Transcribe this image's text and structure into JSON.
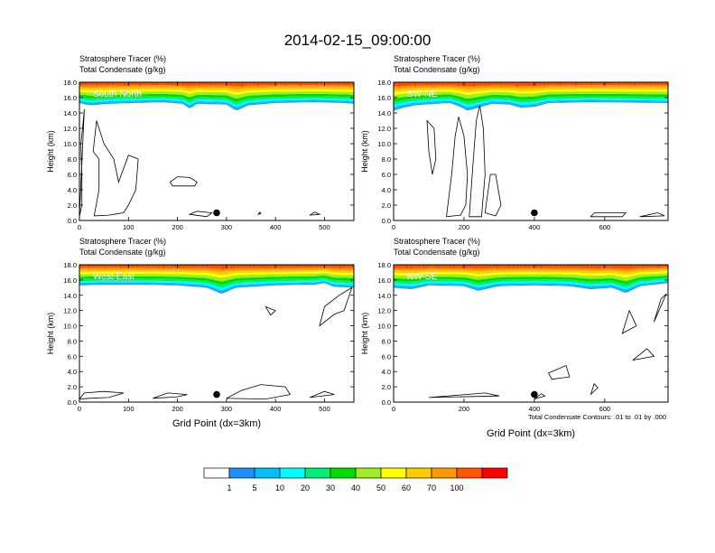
{
  "figure": {
    "title": "2014-02-15_09:00:00",
    "shared_xlabel": "Grid Point (dx=3km)",
    "contour_note": "Total Condensate Contours: .01 to .01 by .000"
  },
  "colorbar": {
    "colors": [
      "#ffffff",
      "#1e90ff",
      "#00bfff",
      "#00ffff",
      "#00ee76",
      "#00dd00",
      "#a0ee20",
      "#ffff00",
      "#ffcc00",
      "#ff9900",
      "#ff5500",
      "#ff0000"
    ],
    "labels": [
      "1",
      "5",
      "10",
      "20",
      "30",
      "40",
      "50",
      "60",
      "70",
      "100"
    ]
  },
  "chart_data": [
    {
      "type": "heatmap",
      "panel": "South-North",
      "label_line1": "Stratosphere Tracer   (%)",
      "label_line2": "Total Condensate   (g/kg)",
      "ylabel": "Height (km)",
      "xlabel": "",
      "xlim": [
        0,
        560
      ],
      "ylim": [
        0,
        18
      ],
      "xticks": [
        "0",
        "100",
        "200",
        "300",
        "400",
        "500"
      ],
      "xtick_values": [
        0,
        100,
        200,
        300,
        400,
        500
      ],
      "yticks": [
        "0.0",
        "2.0",
        "4.0",
        "6.0",
        "8.0",
        "10.0",
        "12.0",
        "14.0",
        "16.0",
        "18.0"
      ],
      "marker_x": 280,
      "marker_y": 1.0,
      "tropopause_km": [
        [
          0,
          15.3
        ],
        [
          20,
          15.0
        ],
        [
          60,
          15.2
        ],
        [
          110,
          15.3
        ],
        [
          170,
          15.4
        ],
        [
          210,
          15.2
        ],
        [
          225,
          14.6
        ],
        [
          240,
          15.2
        ],
        [
          300,
          15.1
        ],
        [
          320,
          14.3
        ],
        [
          345,
          15.0
        ],
        [
          400,
          15.3
        ],
        [
          480,
          15.4
        ],
        [
          540,
          15.3
        ],
        [
          560,
          15.2
        ]
      ],
      "contour_sets": [
        [
          [
            0,
            0.5
          ],
          [
            5,
            2
          ],
          [
            5,
            6
          ],
          [
            3,
            10
          ],
          [
            8,
            13
          ],
          [
            10,
            14.5
          ]
        ],
        [
          [
            30,
            0.6
          ],
          [
            40,
            4
          ],
          [
            40,
            8
          ],
          [
            28,
            9
          ],
          [
            35,
            13
          ],
          [
            50,
            10
          ],
          [
            70,
            8
          ],
          [
            80,
            5
          ],
          [
            100,
            8.5
          ],
          [
            120,
            8
          ],
          [
            115,
            4
          ],
          [
            100,
            2
          ],
          [
            90,
            1
          ],
          [
            60,
            0.7
          ]
        ],
        [
          [
            185,
            5
          ],
          [
            190,
            4.5
          ],
          [
            235,
            4.5
          ],
          [
            240,
            5
          ],
          [
            225,
            5.6
          ],
          [
            200,
            5.7
          ]
        ],
        [
          [
            225,
            0.8
          ],
          [
            260,
            0.5
          ],
          [
            270,
            1
          ],
          [
            240,
            1.2
          ]
        ],
        [
          [
            365,
            0.8
          ],
          [
            370,
            0.9
          ],
          [
            368,
            1.1
          ]
        ],
        [
          [
            470,
            0.7
          ],
          [
            490,
            0.8
          ],
          [
            480,
            1.1
          ]
        ]
      ]
    },
    {
      "type": "heatmap",
      "panel": "SW-NE",
      "label_line1": "Stratosphere Tracer   (%)",
      "label_line2": "Total Condensate   (g/kg)",
      "ylabel": "Height (km)",
      "xlabel": "",
      "xlim": [
        0,
        780
      ],
      "ylim": [
        0,
        18
      ],
      "xticks": [
        "0",
        "200",
        "400",
        "600"
      ],
      "xtick_values": [
        0,
        200,
        400,
        600
      ],
      "yticks": [
        "0.0",
        "2.0",
        "4.0",
        "6.0",
        "8.0",
        "10.0",
        "12.0",
        "14.0",
        "16.0",
        "18.0"
      ],
      "marker_x": 400,
      "marker_y": 1.0,
      "tropopause_km": [
        [
          0,
          14.3
        ],
        [
          20,
          14.6
        ],
        [
          60,
          15.0
        ],
        [
          120,
          15.2
        ],
        [
          160,
          15.3
        ],
        [
          190,
          14.8
        ],
        [
          210,
          14.3
        ],
        [
          240,
          14.7
        ],
        [
          280,
          15.2
        ],
        [
          330,
          15.1
        ],
        [
          360,
          14.7
        ],
        [
          400,
          14.8
        ],
        [
          440,
          15.3
        ],
        [
          560,
          15.4
        ],
        [
          780,
          15.3
        ]
      ],
      "contour_sets": [
        [
          [
            95,
            13
          ],
          [
            100,
            9
          ],
          [
            110,
            6
          ],
          [
            120,
            8
          ],
          [
            115,
            12
          ]
        ],
        [
          [
            150,
            0.5
          ],
          [
            165,
            6
          ],
          [
            175,
            11
          ],
          [
            185,
            13.5
          ],
          [
            200,
            11
          ],
          [
            210,
            6
          ],
          [
            205,
            2
          ],
          [
            190,
            0.7
          ]
        ],
        [
          [
            215,
            0.5
          ],
          [
            225,
            7
          ],
          [
            235,
            13
          ],
          [
            245,
            15
          ],
          [
            255,
            12
          ],
          [
            260,
            6
          ],
          [
            250,
            0.5
          ]
        ],
        [
          [
            260,
            1
          ],
          [
            275,
            6
          ],
          [
            290,
            6
          ],
          [
            305,
            2
          ],
          [
            290,
            0.6
          ]
        ],
        [
          [
            560,
            0.5
          ],
          [
            650,
            0.5
          ],
          [
            660,
            1.0
          ],
          [
            570,
            1.0
          ]
        ],
        [
          [
            700,
            0.5
          ],
          [
            770,
            0.6
          ],
          [
            750,
            1.0
          ]
        ]
      ]
    },
    {
      "type": "heatmap",
      "panel": "West-East",
      "label_line1": "Stratosphere Tracer   (%)",
      "label_line2": "Total Condensate   (g/kg)",
      "ylabel": "Height (km)",
      "xlabel": "",
      "xlim": [
        0,
        560
      ],
      "ylim": [
        0,
        18
      ],
      "xticks": [
        "0",
        "100",
        "200",
        "300",
        "400",
        "500"
      ],
      "xtick_values": [
        0,
        100,
        200,
        300,
        400,
        500
      ],
      "yticks": [
        "0.0",
        "2.0",
        "4.0",
        "6.0",
        "8.0",
        "10.0",
        "12.0",
        "14.0",
        "16.0",
        "18.0"
      ],
      "marker_x": 280,
      "marker_y": 1.0,
      "tropopause_km": [
        [
          0,
          15.3
        ],
        [
          50,
          15.4
        ],
        [
          120,
          15.4
        ],
        [
          200,
          15.3
        ],
        [
          260,
          15.0
        ],
        [
          290,
          14.2
        ],
        [
          320,
          15.0
        ],
        [
          400,
          15.3
        ],
        [
          480,
          15.4
        ],
        [
          500,
          15.6
        ],
        [
          520,
          15.1
        ],
        [
          560,
          15.0
        ]
      ],
      "contour_sets": [
        [
          [
            0,
            0.4
          ],
          [
            10,
            1.2
          ],
          [
            50,
            1.4
          ],
          [
            90,
            1.2
          ],
          [
            60,
            0.6
          ],
          [
            20,
            0.5
          ]
        ],
        [
          [
            150,
            0.5
          ],
          [
            200,
            0.7
          ],
          [
            220,
            1.0
          ],
          [
            180,
            1.2
          ]
        ],
        [
          [
            300,
            0.5
          ],
          [
            330,
            1.5
          ],
          [
            370,
            2.3
          ],
          [
            420,
            2.0
          ],
          [
            430,
            1.0
          ],
          [
            380,
            0.4
          ]
        ],
        [
          [
            470,
            0.6
          ],
          [
            520,
            1.0
          ],
          [
            500,
            1.4
          ]
        ],
        [
          [
            490,
            10
          ],
          [
            500,
            12.5
          ],
          [
            530,
            14
          ],
          [
            556,
            15
          ],
          [
            540,
            12
          ],
          [
            520,
            11.5
          ]
        ],
        [
          [
            380,
            12.5
          ],
          [
            390,
            11.4
          ],
          [
            400,
            12
          ]
        ]
      ]
    },
    {
      "type": "heatmap",
      "panel": "NW-SE",
      "label_line1": "Stratosphere Tracer   (%)",
      "label_line2": "Total Condensate   (g/kg)",
      "ylabel": "Height (km)",
      "xlabel": "",
      "xlim": [
        0,
        780
      ],
      "ylim": [
        0,
        18
      ],
      "xticks": [
        "0",
        "200",
        "400",
        "600"
      ],
      "xtick_values": [
        0,
        200,
        400,
        600
      ],
      "yticks": [
        "0.0",
        "2.0",
        "4.0",
        "6.0",
        "8.0",
        "10.0",
        "12.0",
        "14.0",
        "16.0",
        "18.0"
      ],
      "marker_x": 400,
      "marker_y": 1.0,
      "tropopause_km": [
        [
          0,
          15.0
        ],
        [
          50,
          14.8
        ],
        [
          100,
          15.3
        ],
        [
          200,
          15.2
        ],
        [
          240,
          14.6
        ],
        [
          300,
          15.2
        ],
        [
          400,
          15.3
        ],
        [
          500,
          15.2
        ],
        [
          560,
          14.8
        ],
        [
          620,
          15.0
        ],
        [
          660,
          14.3
        ],
        [
          700,
          15.2
        ],
        [
          780,
          15.6
        ]
      ],
      "contour_sets": [
        [
          [
            400,
            0.4
          ],
          [
            430,
            0.8
          ],
          [
            420,
            1.1
          ]
        ],
        [
          [
            440,
            3.8
          ],
          [
            490,
            4.8
          ],
          [
            500,
            3.3
          ],
          [
            450,
            3.0
          ]
        ],
        [
          [
            560,
            1.0
          ],
          [
            580,
            1.9
          ],
          [
            570,
            2.4
          ]
        ],
        [
          [
            650,
            9.0
          ],
          [
            670,
            12
          ],
          [
            690,
            10
          ]
        ],
        [
          [
            680,
            5.5
          ],
          [
            720,
            7
          ],
          [
            740,
            6
          ]
        ],
        [
          [
            740,
            10.5
          ],
          [
            760,
            13.5
          ],
          [
            775,
            14.2
          ]
        ],
        [
          [
            100,
            0.6
          ],
          [
            300,
            0.8
          ],
          [
            260,
            1.2
          ]
        ]
      ]
    }
  ]
}
